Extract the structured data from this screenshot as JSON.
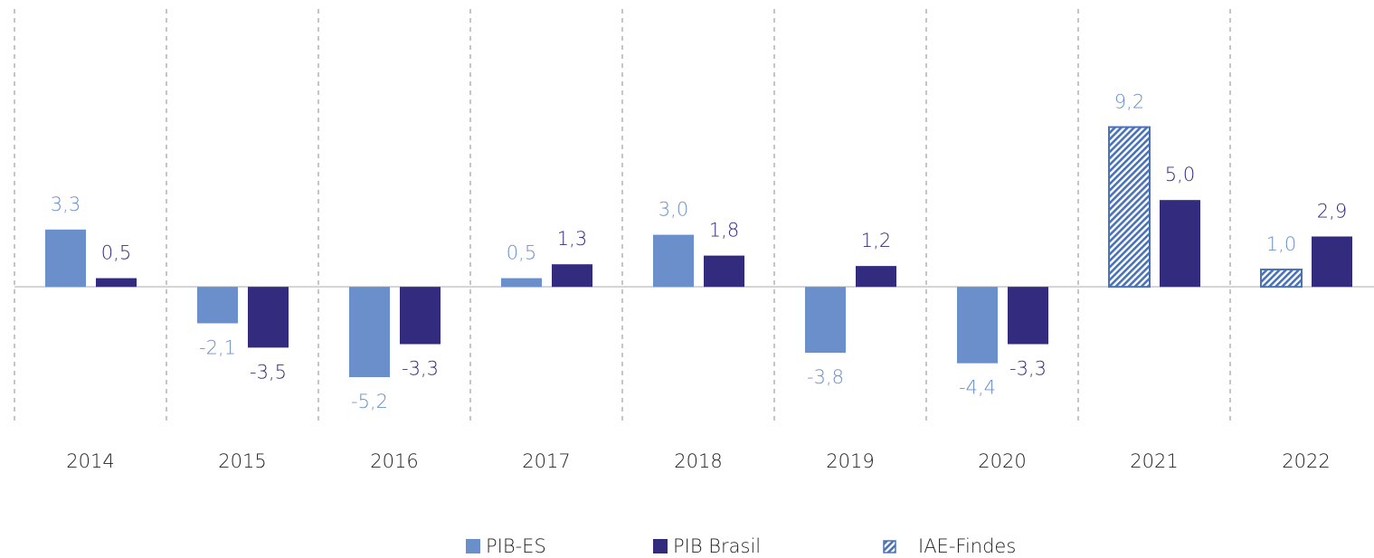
{
  "chart_data": {
    "type": "bar",
    "categories": [
      "2014",
      "2015",
      "2016",
      "2017",
      "2018",
      "2019",
      "2020",
      "2021",
      "2022"
    ],
    "series": [
      {
        "name": "PIB-ES",
        "color": "#6a8fca",
        "values": [
          3.3,
          -2.1,
          -5.2,
          0.5,
          3.0,
          -3.8,
          -4.4,
          null,
          null
        ],
        "value_labels": [
          "3,3",
          "-2,1",
          "-5,2",
          "0,5",
          "3,0",
          "-3,8",
          "-4,4",
          null,
          null
        ]
      },
      {
        "name": "PIB Brasil",
        "color": "#322b7e",
        "values": [
          0.5,
          -3.5,
          -3.3,
          1.3,
          1.8,
          1.2,
          -3.3,
          5.0,
          2.9
        ],
        "value_labels": [
          "0,5",
          "-3,5",
          "-3,3",
          "1,3",
          "1,8",
          "1,2",
          "-3,3",
          "5,0",
          "2,9"
        ]
      },
      {
        "name": "IAE-Findes",
        "color": "#4a72b8",
        "hatch": true,
        "values": [
          null,
          null,
          null,
          null,
          null,
          null,
          null,
          9.2,
          1.0
        ],
        "value_labels": [
          null,
          null,
          null,
          null,
          null,
          null,
          null,
          "9,2",
          "1,0"
        ]
      }
    ],
    "ylim": [
      -7.7,
      16
    ],
    "legend": "bottom"
  }
}
